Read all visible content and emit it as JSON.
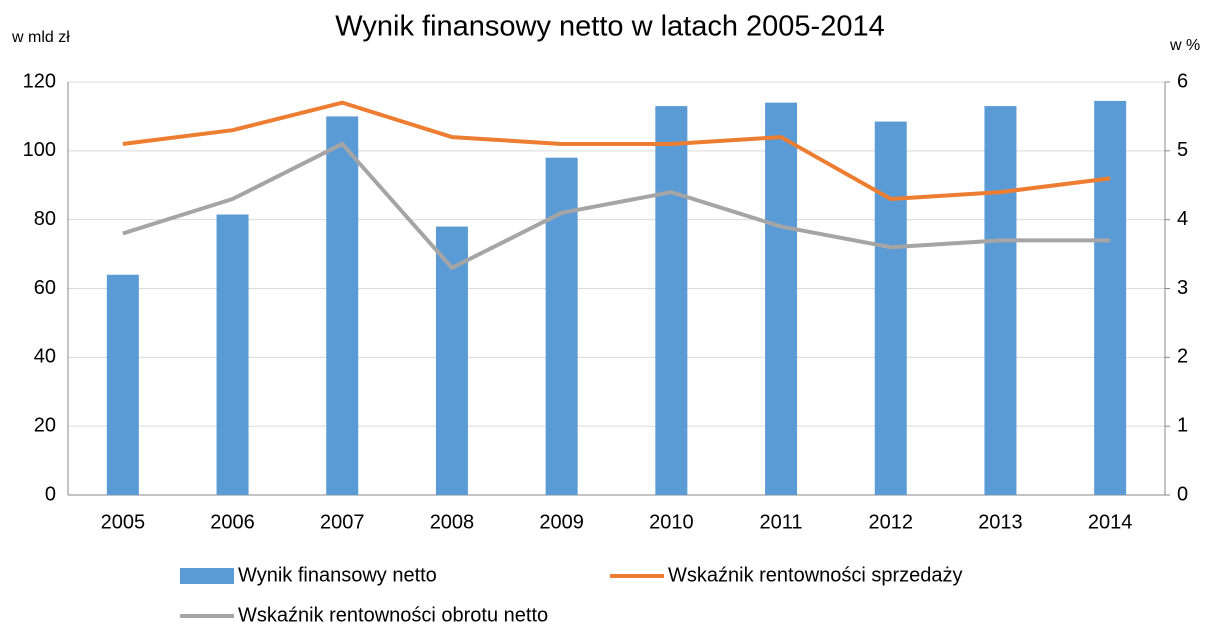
{
  "chart_data": {
    "type": "bar_line",
    "title": "Wynik finansowy netto w latach 2005-2014",
    "y_label": "w mld zł",
    "y2_label": "w %",
    "categories": [
      "2005",
      "2006",
      "2007",
      "2008",
      "2009",
      "2010",
      "2011",
      "2012",
      "2013",
      "2014"
    ],
    "series": [
      {
        "name": "Wynik finansowy netto",
        "type": "bar",
        "color": "#5b9bd5",
        "values": [
          64,
          81.5,
          110,
          78,
          98,
          113,
          114,
          108.5,
          113,
          114.5
        ]
      },
      {
        "name": "Wskaźnik rentowności sprzedaży",
        "type": "line",
        "axis": "y2",
        "color": "#ed7d31",
        "values": [
          5.1,
          5.3,
          5.7,
          5.2,
          5.1,
          5.1,
          5.2,
          4.3,
          4.4,
          4.6
        ]
      },
      {
        "name": "Wskaźnik rentowności obrotu netto",
        "type": "line",
        "axis": "y2",
        "color": "#a5a5a5",
        "values": [
          3.8,
          4.3,
          5.1,
          3.3,
          4.1,
          4.4,
          3.9,
          3.6,
          3.7,
          3.7
        ]
      }
    ],
    "ylim": [
      0,
      120
    ],
    "yticks": [
      0,
      20,
      40,
      60,
      80,
      100,
      120
    ],
    "y2lim": [
      0,
      6
    ],
    "y2ticks": [
      0,
      1,
      2,
      3,
      4,
      5,
      6
    ],
    "grid": true
  }
}
